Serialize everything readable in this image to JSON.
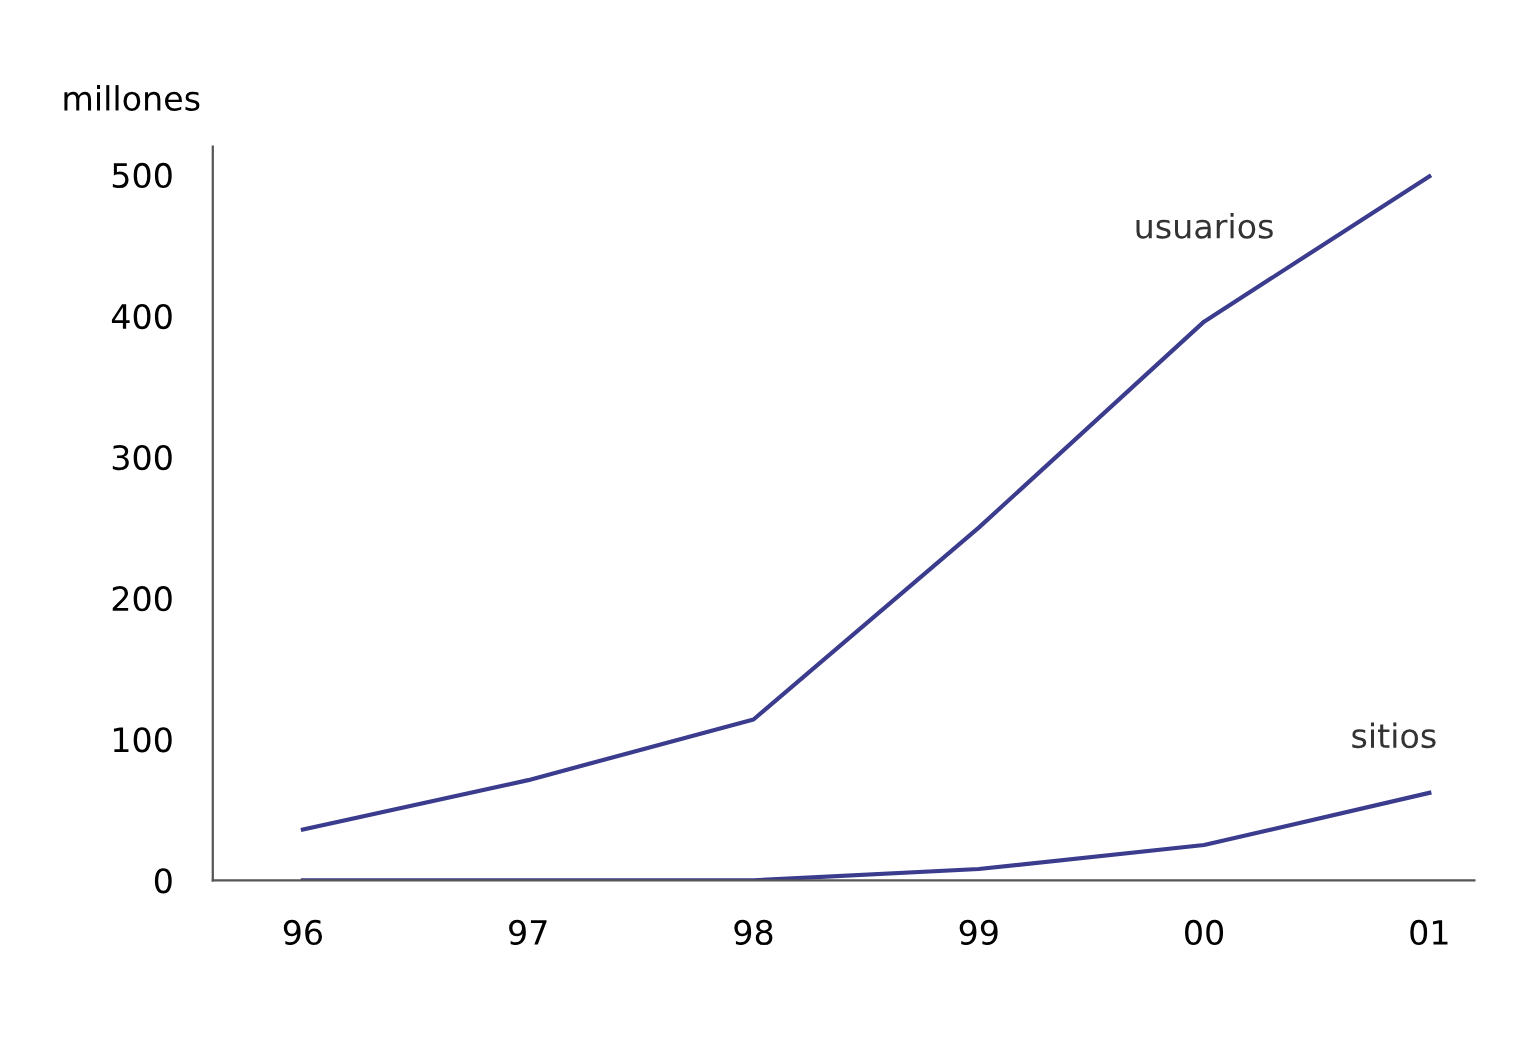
{
  "chart_data": {
    "type": "line",
    "ylabel": "millones",
    "categories": [
      "96",
      "97",
      "98",
      "99",
      "00",
      "01"
    ],
    "series": [
      {
        "name": "usuarios",
        "color": "#3c3c8e",
        "values": [
          36,
          71,
          114,
          250,
          396,
          499
        ]
      },
      {
        "name": "sitios",
        "color": "#3c3c8e",
        "values": [
          0,
          0,
          0,
          8,
          25,
          62
        ]
      }
    ],
    "ylim": [
      0,
      520
    ],
    "yticks": [
      0,
      100,
      200,
      300,
      400,
      500
    ],
    "grid": false,
    "legend": false,
    "marker": "none",
    "line_style": "solid"
  }
}
